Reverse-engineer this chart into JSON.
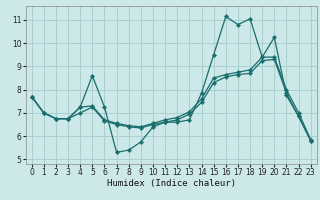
{
  "xlabel": "Humidex (Indice chaleur)",
  "bg_color": "#cce8e8",
  "grid_color": "#aacece",
  "line_color": "#1a6e6e",
  "xlim": [
    -0.5,
    23.5
  ],
  "ylim": [
    4.8,
    11.6
  ],
  "yticks": [
    5,
    6,
    7,
    8,
    9,
    10,
    11
  ],
  "xticks": [
    0,
    1,
    2,
    3,
    4,
    5,
    6,
    7,
    8,
    9,
    10,
    11,
    12,
    13,
    14,
    15,
    16,
    17,
    18,
    19,
    20,
    21,
    22,
    23
  ],
  "line1_x": [
    0,
    1,
    2,
    3,
    4,
    5,
    6,
    7,
    8,
    9,
    10,
    11,
    12,
    13,
    14,
    15,
    16,
    17,
    18,
    19,
    20,
    21,
    22,
    23
  ],
  "line1_y": [
    7.7,
    7.0,
    6.75,
    6.75,
    7.25,
    8.6,
    7.25,
    5.3,
    5.4,
    5.75,
    6.4,
    6.6,
    6.6,
    6.7,
    7.85,
    9.5,
    11.15,
    10.8,
    11.05,
    9.4,
    10.25,
    7.75,
    6.85,
    5.8
  ],
  "line2_x": [
    0,
    1,
    2,
    3,
    4,
    5,
    6,
    7,
    8,
    9,
    10,
    11,
    12,
    13,
    14,
    15,
    16,
    17,
    18,
    19,
    20,
    21,
    22,
    23
  ],
  "line2_y": [
    7.7,
    7.0,
    6.75,
    6.75,
    7.25,
    7.3,
    6.7,
    6.55,
    6.45,
    6.4,
    6.55,
    6.7,
    6.8,
    7.05,
    7.6,
    8.5,
    8.65,
    8.75,
    8.85,
    9.4,
    9.4,
    8.0,
    7.0,
    5.85
  ],
  "line3_x": [
    0,
    1,
    2,
    3,
    4,
    5,
    6,
    7,
    8,
    9,
    10,
    11,
    12,
    13,
    14,
    15,
    16,
    17,
    18,
    19,
    20,
    21,
    22,
    23
  ],
  "line3_y": [
    7.7,
    7.0,
    6.75,
    6.75,
    7.0,
    7.25,
    6.65,
    6.5,
    6.4,
    6.35,
    6.5,
    6.6,
    6.7,
    6.95,
    7.45,
    8.3,
    8.55,
    8.65,
    8.7,
    9.25,
    9.3,
    7.85,
    6.85,
    5.8
  ]
}
